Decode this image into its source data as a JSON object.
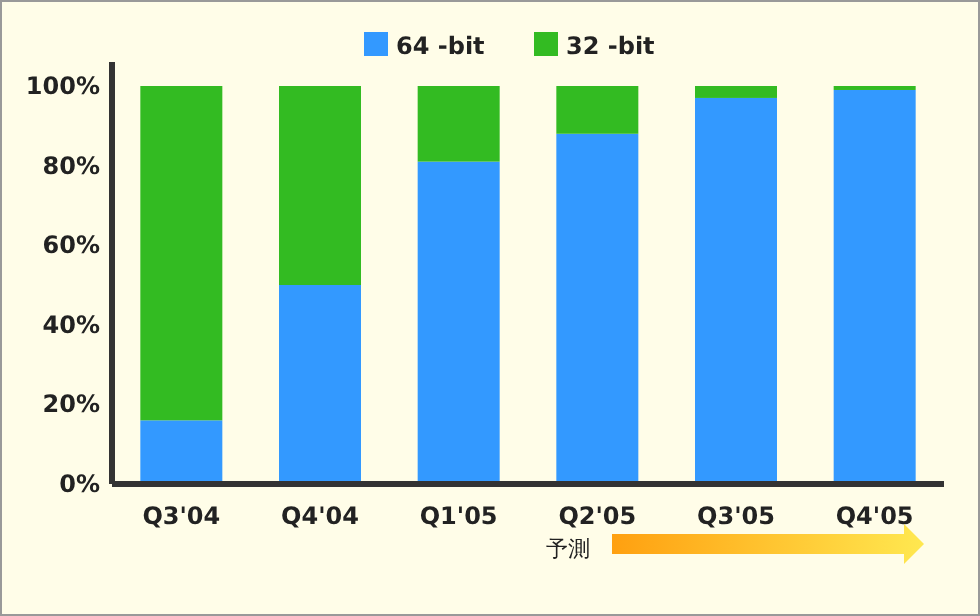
{
  "chart_data": {
    "type": "bar",
    "stacked": true,
    "categories": [
      "Q3'04",
      "Q4'04",
      "Q1'05",
      "Q2'05",
      "Q3'05",
      "Q4'05"
    ],
    "series": [
      {
        "name": "64 -bit",
        "color": "#3399ff",
        "values": [
          16,
          50,
          81,
          88,
          97,
          99
        ]
      },
      {
        "name": "32 -bit",
        "color": "#33bb22",
        "values": [
          84,
          50,
          19,
          12,
          3,
          1
        ]
      }
    ],
    "ylim": [
      0,
      100
    ],
    "yticks": [
      {
        "value": 0,
        "label": "0%"
      },
      {
        "value": 20,
        "label": "20%"
      },
      {
        "value": 40,
        "label": "40%"
      },
      {
        "value": 60,
        "label": "60%"
      },
      {
        "value": 80,
        "label": "80%"
      },
      {
        "value": 100,
        "label": "100%"
      }
    ],
    "legend": "top",
    "grid": false,
    "annotations": [
      "予測"
    ]
  }
}
